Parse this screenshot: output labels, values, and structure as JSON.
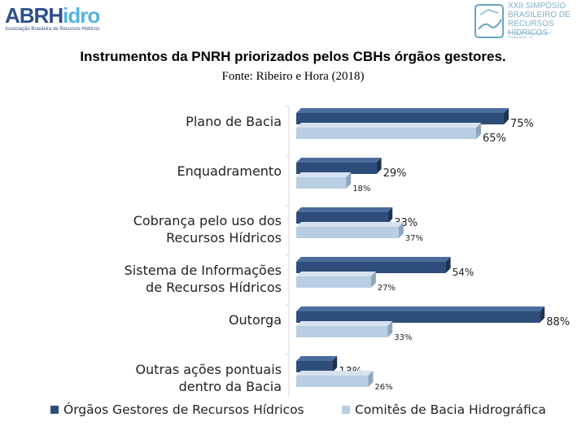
{
  "logos": {
    "left_word_a": "ABRH",
    "left_word_b": "idro",
    "left_tagline": "Associação Brasileira de Recursos Hídricos",
    "right_lines": [
      "XXII SIMPÓSIO",
      "BRASILEIRO DE",
      "RECURSOS HÍDRICOS"
    ],
    "right_small": [
      "26 a 30 de novembro de 2017",
      "Florianópolis - SC"
    ]
  },
  "chart_data": {
    "type": "bar",
    "orientation": "horizontal",
    "title": "Instrumentos da PNRH priorizados pelos CBHs órgãos gestores.",
    "subtitle": "Fonte: Ribeiro e Hora (2018)",
    "categories": [
      "Plano de Bacia",
      "Enquadramento",
      "Cobrança pelo uso dos Recursos Hídricos",
      "Sistema de Informações de Recursos Hídricos",
      "Outorga",
      "Outras ações pontuais dentro da Bacia"
    ],
    "series": [
      {
        "name": "Órgãos Gestores de Recursos Hídricos",
        "color": "#2e4d7b",
        "values": [
          75,
          29,
          33,
          54,
          88,
          13
        ],
        "labels": [
          "75%",
          "29%",
          "33%",
          "54%",
          "88%",
          "13%"
        ]
      },
      {
        "name": "Comitês de Bacia Hidrográfica",
        "color": "#b9cde3",
        "values": [
          65,
          18,
          37,
          27,
          33,
          26
        ],
        "labels": [
          "65%",
          "18%",
          "37%",
          "27%",
          "33%",
          "26%"
        ]
      }
    ],
    "xlim": [
      0,
      100
    ],
    "grid": false,
    "legend": "bottom"
  }
}
